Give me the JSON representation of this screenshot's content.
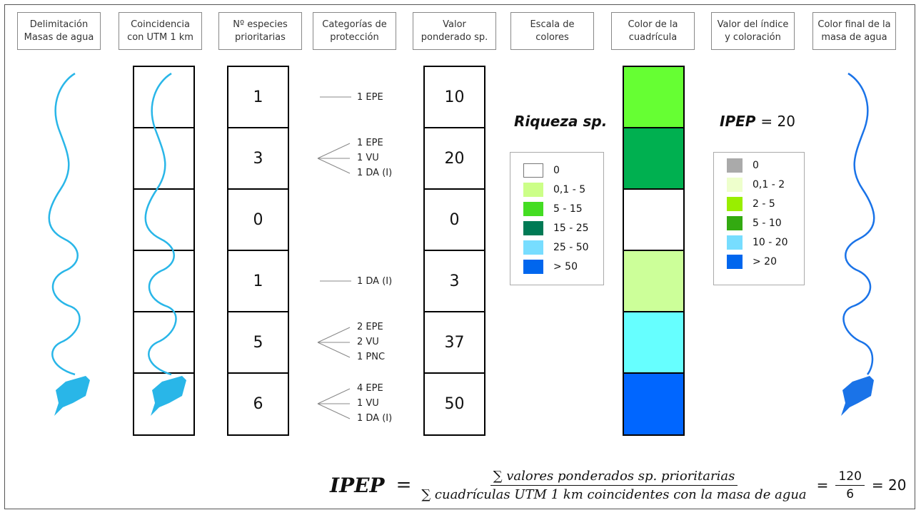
{
  "headers": [
    "Delimitación\nMasas de agua",
    "Coincidencia\ncon UTM 1 km",
    "Nº especies\nprioritarias",
    "Categorías de\nprotección",
    "Valor\nponderado sp.",
    "Escala de\ncolores",
    "Color de la\ncuadrícula",
    "Valor del índice\ny coloración",
    "Color final de la\nmasa de agua"
  ],
  "species_counts": [
    "1",
    "3",
    "0",
    "1",
    "5",
    "6"
  ],
  "weighted_values": [
    "10",
    "20",
    "0",
    "3",
    "37",
    "50"
  ],
  "categories": [
    [
      "1 EPE"
    ],
    [
      "1 EPE",
      "1 VU",
      "1 DA (I)"
    ],
    [],
    [
      "1 DA (I)"
    ],
    [
      "2 EPE",
      "2 VU",
      "1 PNC"
    ],
    [
      "4 EPE",
      "1 VU",
      "1 DA (I)"
    ]
  ],
  "cell_colors": [
    "#66ff33",
    "#00b050",
    "#ffffff",
    "#ccff99",
    "#66ffff",
    "#0066ff"
  ],
  "riqueza_legend": {
    "title": "Riqueza sp.",
    "items": [
      {
        "label": "0",
        "color": "#ffffff"
      },
      {
        "label": "0,1 - 5",
        "color": "#ccff88"
      },
      {
        "label": "5 - 15",
        "color": "#44dd22"
      },
      {
        "label": "15 - 25",
        "color": "#007a55"
      },
      {
        "label": "25 - 50",
        "color": "#77ddff"
      },
      {
        "label": "> 50",
        "color": "#0066ee"
      }
    ]
  },
  "ipep_legend": {
    "title": "IPEP",
    "value_text": "= 20",
    "items": [
      {
        "label": "0",
        "color": "#aaaaaa"
      },
      {
        "label": "0,1 - 2",
        "color": "#eeffcc"
      },
      {
        "label": "2 - 5",
        "color": "#99ee00"
      },
      {
        "label": "5 - 10",
        "color": "#33aa11"
      },
      {
        "label": "10 - 20",
        "color": "#77ddff"
      },
      {
        "label": "> 20",
        "color": "#0066ee"
      }
    ]
  },
  "river_colors": {
    "light": "#29b6e8",
    "final": "#1a73e8"
  },
  "formula": {
    "name": "IPEP",
    "equals": "=",
    "numerator": "∑ valores ponderados sp. prioritarias",
    "denominator": "∑ cuadrículas UTM 1 km coincidentes con la masa de agua",
    "eq2": "=",
    "frac_num": "120",
    "frac_den": "6",
    "result": "= 20"
  }
}
